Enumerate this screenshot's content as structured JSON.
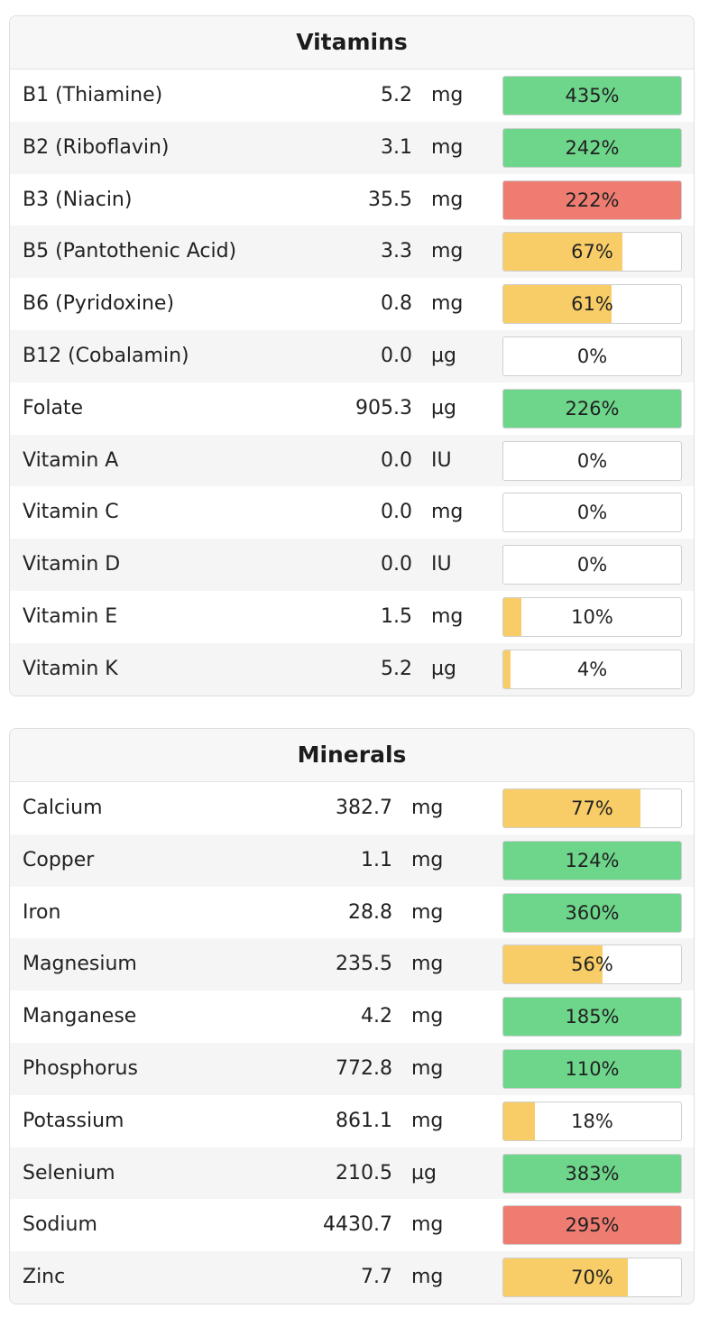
{
  "colors": {
    "good": "#6dd68b",
    "partial": "#f8cd67",
    "excess": "#ee7c71"
  },
  "vitamins": {
    "title": "Vitamins",
    "rows": [
      {
        "name": "B1 (Thiamine)",
        "amount": "5.2",
        "unit": "mg",
        "label": "435%",
        "pct": 435,
        "status": "good"
      },
      {
        "name": "B2 (Riboflavin)",
        "amount": "3.1",
        "unit": "mg",
        "label": "242%",
        "pct": 242,
        "status": "good"
      },
      {
        "name": "B3 (Niacin)",
        "amount": "35.5",
        "unit": "mg",
        "label": "222%",
        "pct": 222,
        "status": "excess"
      },
      {
        "name": "B5 (Pantothenic Acid)",
        "amount": "3.3",
        "unit": "mg",
        "label": "67%",
        "pct": 67,
        "status": "partial"
      },
      {
        "name": "B6 (Pyridoxine)",
        "amount": "0.8",
        "unit": "mg",
        "label": "61%",
        "pct": 61,
        "status": "partial"
      },
      {
        "name": "B12 (Cobalamin)",
        "amount": "0.0",
        "unit": "µg",
        "label": "0%",
        "pct": 0,
        "status": "partial"
      },
      {
        "name": "Folate",
        "amount": "905.3",
        "unit": "µg",
        "label": "226%",
        "pct": 226,
        "status": "good"
      },
      {
        "name": "Vitamin A",
        "amount": "0.0",
        "unit": "IU",
        "label": "0%",
        "pct": 0,
        "status": "partial"
      },
      {
        "name": "Vitamin C",
        "amount": "0.0",
        "unit": "mg",
        "label": "0%",
        "pct": 0,
        "status": "partial"
      },
      {
        "name": "Vitamin D",
        "amount": "0.0",
        "unit": "IU",
        "label": "0%",
        "pct": 0,
        "status": "partial"
      },
      {
        "name": "Vitamin E",
        "amount": "1.5",
        "unit": "mg",
        "label": "10%",
        "pct": 10,
        "status": "partial"
      },
      {
        "name": "Vitamin K",
        "amount": "5.2",
        "unit": "µg",
        "label": "4%",
        "pct": 4,
        "status": "partial"
      }
    ]
  },
  "minerals": {
    "title": "Minerals",
    "rows": [
      {
        "name": "Calcium",
        "amount": "382.7",
        "unit": "mg",
        "label": "77%",
        "pct": 77,
        "status": "partial"
      },
      {
        "name": "Copper",
        "amount": "1.1",
        "unit": "mg",
        "label": "124%",
        "pct": 124,
        "status": "good"
      },
      {
        "name": "Iron",
        "amount": "28.8",
        "unit": "mg",
        "label": "360%",
        "pct": 360,
        "status": "good"
      },
      {
        "name": "Magnesium",
        "amount": "235.5",
        "unit": "mg",
        "label": "56%",
        "pct": 56,
        "status": "partial"
      },
      {
        "name": "Manganese",
        "amount": "4.2",
        "unit": "mg",
        "label": "185%",
        "pct": 185,
        "status": "good"
      },
      {
        "name": "Phosphorus",
        "amount": "772.8",
        "unit": "mg",
        "label": "110%",
        "pct": 110,
        "status": "good"
      },
      {
        "name": "Potassium",
        "amount": "861.1",
        "unit": "mg",
        "label": "18%",
        "pct": 18,
        "status": "partial"
      },
      {
        "name": "Selenium",
        "amount": "210.5",
        "unit": "µg",
        "label": "383%",
        "pct": 383,
        "status": "good"
      },
      {
        "name": "Sodium",
        "amount": "4430.7",
        "unit": "mg",
        "label": "295%",
        "pct": 295,
        "status": "excess"
      },
      {
        "name": "Zinc",
        "amount": "7.7",
        "unit": "mg",
        "label": "70%",
        "pct": 70,
        "status": "partial"
      }
    ]
  }
}
